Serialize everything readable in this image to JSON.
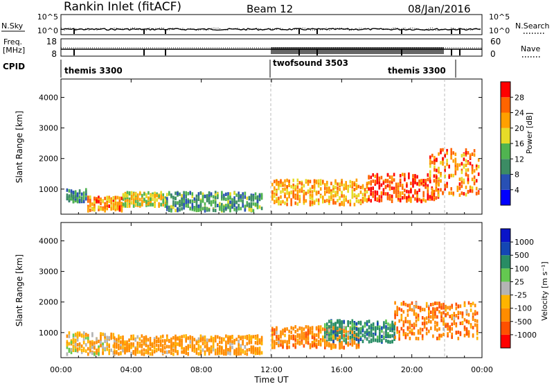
{
  "header": {
    "title": "Rankin Inlet (fitACF)",
    "beam": "Beam 12",
    "date": "08/Jan/2016"
  },
  "top_panels": {
    "nsky_label": "N.Sky",
    "nsky_ticks": [
      "10^5",
      "10^0"
    ],
    "nsearch_label": "N.Search",
    "nsearch_ticks": [
      "10^5",
      "10^0"
    ],
    "freq_label_line1": "Freq.",
    "freq_label_line2": "[MHz]",
    "freq_ticks": [
      "18",
      "8"
    ],
    "nave_label": "Nave",
    "nave_ticks": [
      "60",
      "0"
    ],
    "cpid_label": "CPID",
    "cpid_segments": [
      {
        "name": "themis 3300",
        "start_hour": 0
      },
      {
        "name": "twofsound 3503",
        "start_hour": 12
      },
      {
        "name": "themis 3300",
        "start_hour": 19.4
      }
    ]
  },
  "colors": {
    "power_scale": [
      "#0000ff",
      "#2850b4",
      "#3c8c64",
      "#50b450",
      "#e6dc28",
      "#ffa000",
      "#ff6400",
      "#ff0000"
    ],
    "velocity_scale": [
      "#ff0000",
      "#ff5000",
      "#ff8c00",
      "#ffb400",
      "#b4b4b4",
      "#64c850",
      "#288c64",
      "#1446b4",
      "#0a14c8"
    ]
  },
  "chart_data": [
    {
      "type": "heatmap",
      "title": "",
      "xlabel": "",
      "ylabel": "Slant Range [km]",
      "xlim_hours": [
        0,
        24
      ],
      "ylim": [
        180,
        4600
      ],
      "yticks": [
        1000,
        2000,
        3000,
        4000
      ],
      "colorbar_label": "Power [dB]",
      "colorbar_ticks": [
        "4",
        "8",
        "12",
        "16",
        "20",
        "24",
        "28"
      ],
      "colorbar_range": [
        0,
        32
      ],
      "features": [
        {
          "hours": [
            0.3,
            1.5
          ],
          "range_km": [
            600,
            1000
          ],
          "level_db": 10
        },
        {
          "hours": [
            1.5,
            3.5
          ],
          "range_km": [
            300,
            750
          ],
          "level_db": 24
        },
        {
          "hours": [
            3.5,
            6.0
          ],
          "range_km": [
            450,
            900
          ],
          "level_db": 18
        },
        {
          "hours": [
            6.0,
            11.5
          ],
          "range_km": [
            300,
            900
          ],
          "level_db": 12
        },
        {
          "hours": [
            12.0,
            17.5
          ],
          "range_km": [
            500,
            1300
          ],
          "level_db": 22
        },
        {
          "hours": [
            17.5,
            21.5
          ],
          "range_km": [
            600,
            1500
          ],
          "level_db": 27
        },
        {
          "hours": [
            21.0,
            23.8
          ],
          "range_km": [
            800,
            2300
          ],
          "level_db": 24
        }
      ]
    },
    {
      "type": "heatmap",
      "title": "",
      "xlabel": "Time UT",
      "ylabel": "Slant Range [km]",
      "xticks": [
        "00:00",
        "04:00",
        "08:00",
        "12:00",
        "16:00",
        "20:00",
        "00:00"
      ],
      "xlim_hours": [
        0,
        24
      ],
      "ylim": [
        180,
        4600
      ],
      "yticks": [
        1000,
        2000,
        3000,
        4000
      ],
      "colorbar_label": "Velocity [m s⁻¹]",
      "colorbar_ticks": [
        "-1000",
        "-500",
        "-100",
        "-25",
        "25",
        "100",
        "500",
        "1000"
      ],
      "features": [
        {
          "hours": [
            0.3,
            3.0
          ],
          "range_km": [
            300,
            1000
          ],
          "velocity": -50
        },
        {
          "hours": [
            3.0,
            11.5
          ],
          "range_km": [
            300,
            900
          ],
          "velocity": -150
        },
        {
          "hours": [
            12.0,
            17.0
          ],
          "range_km": [
            500,
            1200
          ],
          "velocity": -300
        },
        {
          "hours": [
            15.0,
            19.0
          ],
          "range_km": [
            700,
            1400
          ],
          "velocity": 300
        },
        {
          "hours": [
            19.0,
            23.8
          ],
          "range_km": [
            800,
            2000
          ],
          "velocity": -400
        }
      ]
    }
  ]
}
